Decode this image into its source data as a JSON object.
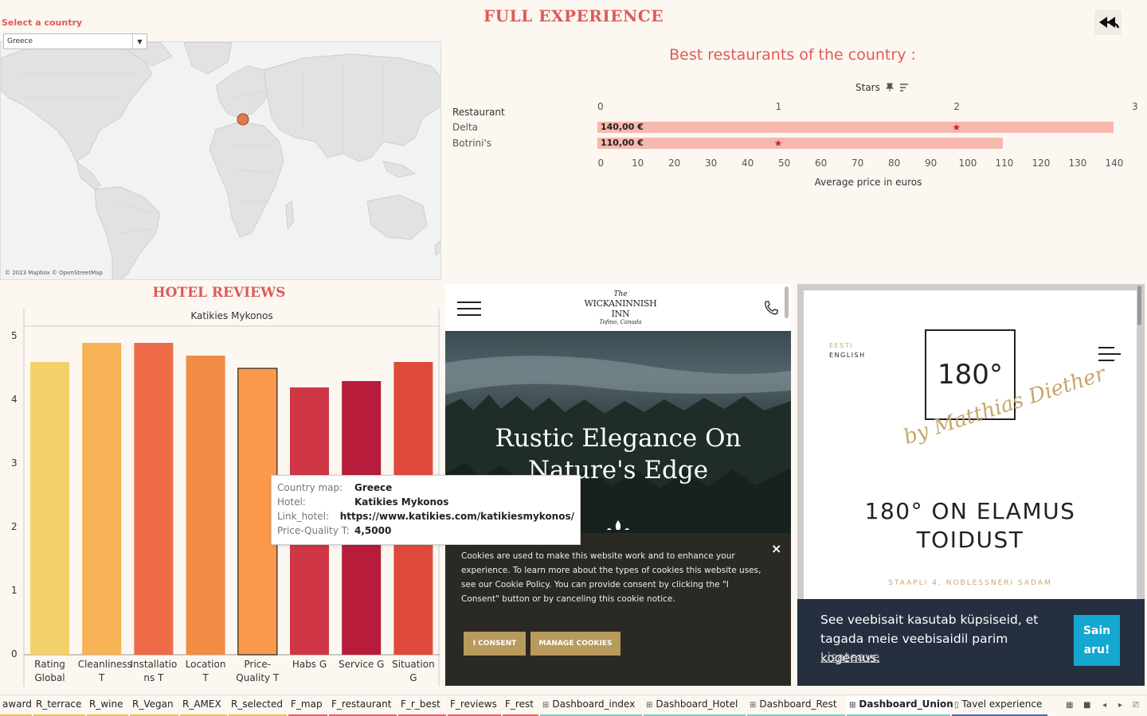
{
  "header": {
    "title": "FULL EXPERIENCE",
    "back_icon": "double-back-arrow-icon"
  },
  "filter": {
    "label": "Select a country",
    "selected": "Greece"
  },
  "map": {
    "attribution": "© 2023 Mapbox © OpenStreetMap",
    "highlighted_country": "Greece",
    "highlight_color": "#e07a50"
  },
  "restaurants": {
    "title": "Best restaurants of the country :",
    "stars_header": "Stars",
    "column_header": "Restaurant",
    "x_title": "Average price in euros",
    "top_ticks": [
      "0",
      "1",
      "2",
      "3"
    ],
    "bottom_ticks": [
      "0",
      "10",
      "20",
      "30",
      "40",
      "50",
      "60",
      "70",
      "80",
      "90",
      "100",
      "110",
      "120",
      "130",
      "140"
    ],
    "rows": [
      {
        "name": "Delta",
        "price": 140,
        "price_label": "140,00 €",
        "stars": 2
      },
      {
        "name": "Botrini's",
        "price": 110,
        "price_label": "110,00 €",
        "stars": 1
      }
    ],
    "bar_color": "#f7b8ad",
    "star_color": "#c8243b"
  },
  "hotel_reviews": {
    "title": "HOTEL REVIEWS",
    "hotel": "Katikies Mykonos",
    "y_ticks": [
      "0",
      "1",
      "2",
      "3",
      "4",
      "5"
    ]
  },
  "chart_data": {
    "type": "bar",
    "title": "Katikies Mykonos",
    "categories": [
      "Rating Global",
      "Cleanliness T",
      "Installations T",
      "Location T",
      "Price-Quality T",
      "Habs G",
      "Service G",
      "Situation G"
    ],
    "category_labels": [
      [
        "Rating",
        "Global"
      ],
      [
        "Cleanliness",
        "T"
      ],
      [
        "Installatio",
        "ns T"
      ],
      [
        "Location T"
      ],
      [
        "Price-",
        "Quality T"
      ],
      [
        "Habs G"
      ],
      [
        "Service G"
      ],
      [
        "Situation",
        "G"
      ]
    ],
    "values": [
      4.6,
      4.9,
      4.9,
      4.7,
      4.5,
      4.2,
      4.3,
      4.6
    ],
    "colors": [
      "#f2d16b",
      "#f7b255",
      "#ee6b48",
      "#f28b44",
      "#fb9a4c",
      "#cf3646",
      "#b71c3a",
      "#e04a3d"
    ],
    "ylim": [
      0,
      5
    ],
    "selected_index": 4
  },
  "tooltip": {
    "rows": [
      {
        "key": "Country map:",
        "value": "Greece"
      },
      {
        "key": "Hotel:",
        "value": "Katikies Mykonos"
      },
      {
        "key": "Link_hotel:",
        "value": "https://www.katikies.com/katikiesmykonos/"
      },
      {
        "key": "Price-Quality T:",
        "value": "4,5000"
      }
    ]
  },
  "web_wickaninnish": {
    "logo_small": "The",
    "logo_main": "WICKANINNISH INN",
    "logo_sub": "Tofino, Canada",
    "hero_title_line1": "Rustic Elegance On",
    "hero_title_line2": "Nature's Edge",
    "cookie_text": "Cookies are used to make this website work and to enhance your experience. To learn more about the types of cookies this website uses, see our Cookie Policy. You can provide consent by clicking the \"I Consent\" button or by canceling this cookie notice.",
    "consent_label": "I CONSENT",
    "manage_label": "MANAGE COOKIES",
    "close_label": "×"
  },
  "web_180": {
    "lang_et": "EESTI",
    "lang_en": "ENGLISH",
    "logo_text": "180°",
    "signature": "by Matthias Diether",
    "heading_line1": "180° ON ELAMUS",
    "heading_line2": "TOIDUST",
    "address": "STAAPLI 4, NOBLESSNERI SADAM",
    "cookie_msg": "See veebisait kasutab küpsiseid, et tagada meie veebisaidil parim kogemus.",
    "cookie_more": "Lisateave",
    "cookie_ok_line1": "Sain",
    "cookie_ok_line2": "aru!"
  },
  "tabs": [
    {
      "label": "award",
      "color": "#e8c45a"
    },
    {
      "label": "R_terrace",
      "color": "#e8c45a"
    },
    {
      "label": "R_wine",
      "color": "#e8c45a"
    },
    {
      "label": "R_Vegan",
      "color": "#e8c45a"
    },
    {
      "label": "R_AMEX",
      "color": "#e8c45a"
    },
    {
      "label": "R_selected",
      "color": "#e8c45a"
    },
    {
      "label": "F_map",
      "color": "#e8606a"
    },
    {
      "label": "F_restaurant",
      "color": "#e8606a"
    },
    {
      "label": "F_r_best",
      "color": "#e8606a"
    },
    {
      "label": "F_reviews",
      "color": "#e8606a"
    },
    {
      "label": "F_rest",
      "color": "#e8606a"
    },
    {
      "label": "Dashboard_index",
      "color": "#7fc8c0"
    },
    {
      "label": "Dashboard_Hotel",
      "color": "#7fc8c0"
    },
    {
      "label": "Dashboard_Rest",
      "color": "#7fc8c0"
    },
    {
      "label": "Dashboard_Union",
      "color": "#7fc8c0",
      "selected": true
    },
    {
      "label": "Tavel experience",
      "color": "#4a6fa5"
    }
  ]
}
